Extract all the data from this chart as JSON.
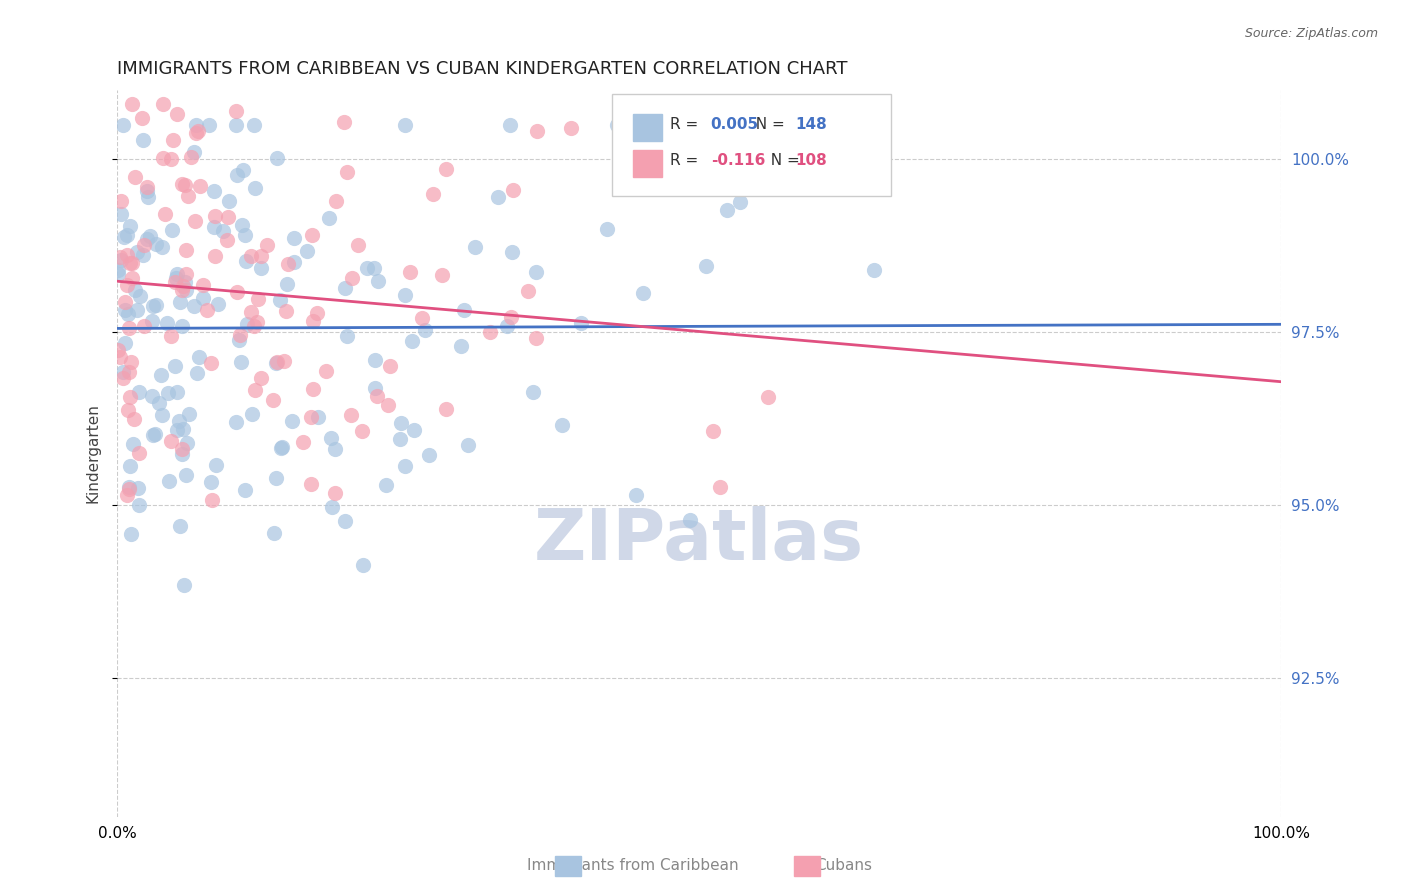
{
  "title": "IMMIGRANTS FROM CARIBBEAN VS CUBAN KINDERGARTEN CORRELATION CHART",
  "source_text": "Source: ZipAtlas.com",
  "xlabel": "",
  "ylabel": "Kindergarten",
  "legend_label1": "Immigrants from Caribbean",
  "legend_label2": "Cubans",
  "r1": 0.005,
  "n1": 148,
  "r2": -0.116,
  "n2": 108,
  "color1": "#a8c4e0",
  "color2": "#f4a0b0",
  "line_color1": "#4472c4",
  "line_color2": "#e05080",
  "watermark": "ZIPatlas",
  "watermark_color": "#d0d8e8",
  "xlim": [
    0.0,
    100.0
  ],
  "ylim": [
    90.5,
    101.0
  ],
  "yticks": [
    92.5,
    95.0,
    97.5,
    100.0
  ],
  "xticks_labels": [
    "0.0%",
    "100.0%"
  ],
  "background_color": "#ffffff",
  "grid_color": "#cccccc",
  "title_fontsize": 13,
  "axis_fontsize": 11
}
